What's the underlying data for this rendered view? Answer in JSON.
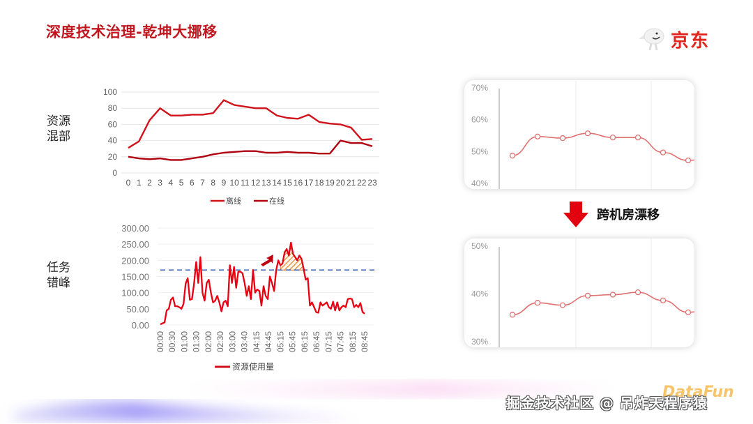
{
  "slide": {
    "title": "深度技术治理-乾坤大挪移",
    "logo_text": "京东",
    "label_top": [
      "资源",
      "混部"
    ],
    "label_bottom": [
      "任务",
      "错峰"
    ],
    "arrow_label": "跨机房漂移",
    "watermark": "掘金技术社区 @ 吊炸天程序猿",
    "watermark_logo": "DataFun",
    "colors": {
      "title_red": "#c0171f",
      "line_red": "#c00000",
      "line_bright_red": "#e60012",
      "dashed_blue": "#4a6fc1",
      "hatch_orange": "#e07a22",
      "pink_line": "#e07070",
      "arrow_red": "#e3000f"
    }
  },
  "chart_data": [
    {
      "type": "line",
      "title": "资源混部",
      "categories": [
        "0",
        "1",
        "2",
        "3",
        "4",
        "5",
        "6",
        "7",
        "8",
        "9",
        "10",
        "11",
        "12",
        "13",
        "14",
        "15",
        "16",
        "17",
        "18",
        "19",
        "20",
        "21",
        "22",
        "23"
      ],
      "series": [
        {
          "name": "离线",
          "values": [
            31,
            39,
            65,
            80,
            71,
            71,
            72,
            72,
            74,
            90,
            84,
            82,
            80,
            80,
            71,
            68,
            67,
            72,
            63,
            61,
            60,
            56,
            41,
            42
          ]
        },
        {
          "name": "在线",
          "values": [
            20,
            18,
            17,
            18,
            16,
            16,
            18,
            20,
            23,
            25,
            26,
            27,
            27,
            25,
            25,
            26,
            25,
            25,
            24,
            24,
            40,
            37,
            37,
            33
          ]
        }
      ],
      "yticks": [
        "0",
        "20",
        "40",
        "60",
        "80",
        "100"
      ],
      "ylim": [
        0,
        100
      ],
      "legend": [
        "离线",
        "在线"
      ],
      "legend_position": "bottom",
      "grid": true
    },
    {
      "type": "line",
      "title": "任务错峰",
      "xtick_labels": [
        "00:00",
        "00:30",
        "01:00",
        "01:30",
        "02:00",
        "02:30",
        "03:00",
        "03:40",
        "04:15",
        "04:45",
        "05:15",
        "05:45",
        "06:15",
        "06:45",
        "07:15",
        "07:45",
        "08:15",
        "08:45"
      ],
      "series": [
        {
          "name": "资源使用量",
          "values": [
            2,
            5,
            8,
            45,
            50,
            78,
            85,
            58,
            58,
            55,
            50,
            65,
            128,
            145,
            78,
            80,
            128,
            195,
            130,
            210,
            100,
            75,
            130,
            140,
            100,
            70,
            75,
            90,
            70,
            42,
            70,
            75,
            58,
            185,
            130,
            180,
            115,
            165,
            165,
            160,
            130,
            90,
            120,
            80,
            170,
            100,
            110,
            105,
            60,
            120,
            90,
            80,
            150,
            130,
            105,
            170,
            200,
            185,
            190,
            225,
            235,
            215,
            255,
            220,
            210,
            200,
            215,
            205,
            175,
            140,
            145,
            60,
            70,
            55,
            40,
            38,
            70,
            60,
            65,
            70,
            55,
            50,
            72,
            45,
            70,
            45,
            55,
            60,
            55,
            80,
            82,
            80,
            55,
            62,
            55,
            68,
            40,
            35
          ]
        }
      ],
      "yticks": [
        "0.00",
        "50.00",
        "100.00",
        "150.00",
        "200.00",
        "250.00",
        "300.00"
      ],
      "ylim": [
        0,
        300
      ],
      "threshold": 170,
      "annotations": [
        "dashed threshold line ~170",
        "hatched peak area above threshold shifted left (arrow)"
      ],
      "legend": [
        "资源使用量"
      ],
      "legend_position": "bottom"
    },
    {
      "type": "line",
      "title": "跨机房漂移前",
      "yticks": [
        "40%",
        "50%",
        "60%",
        "70%"
      ],
      "ylim": [
        40,
        70
      ],
      "values": [
        48.5,
        54.5,
        54,
        55.5,
        54.2,
        54.2,
        49.5,
        47,
        48
      ]
    },
    {
      "type": "line",
      "title": "跨机房漂移后",
      "yticks": [
        "30%",
        "40%",
        "50%"
      ],
      "ylim": [
        30,
        50
      ],
      "values": [
        35.5,
        38,
        37.5,
        39.5,
        39.7,
        40.2,
        38.5,
        36,
        37
      ]
    }
  ]
}
